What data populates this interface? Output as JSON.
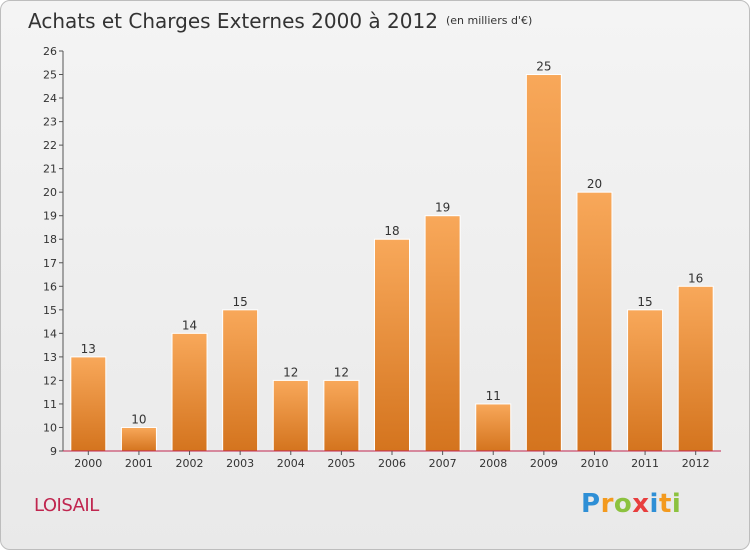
{
  "title": "Achats et Charges Externes 2000 à 2012",
  "subtitle": "(en milliers d'€)",
  "place": "LOISAIL",
  "logo": {
    "text": "Proxiti",
    "letters": [
      {
        "ch": "P",
        "color": "#2e8fd6"
      },
      {
        "ch": "r",
        "color": "#f39a1e"
      },
      {
        "ch": "o",
        "color": "#8cc23f"
      },
      {
        "ch": "x",
        "color": "#e83e3e"
      },
      {
        "ch": "i",
        "color": "#2e8fd6"
      },
      {
        "ch": "t",
        "color": "#f39a1e"
      },
      {
        "ch": "i",
        "color": "#8cc23f"
      }
    ]
  },
  "chart_data": {
    "type": "bar",
    "categories": [
      "2000",
      "2001",
      "2002",
      "2003",
      "2004",
      "2005",
      "2006",
      "2007",
      "2008",
      "2009",
      "2010",
      "2011",
      "2012"
    ],
    "values": [
      13,
      10,
      14,
      15,
      12,
      12,
      18,
      19,
      11,
      25,
      20,
      15,
      16
    ],
    "ylim": [
      9,
      26
    ],
    "yticks": [
      9,
      10,
      11,
      12,
      13,
      14,
      15,
      16,
      17,
      18,
      19,
      20,
      21,
      22,
      23,
      24,
      25,
      26
    ],
    "grid": false,
    "bar_color_top": "#f8a85a",
    "bar_color_bottom": "#d4741e",
    "axis_color": "#c0264f"
  }
}
